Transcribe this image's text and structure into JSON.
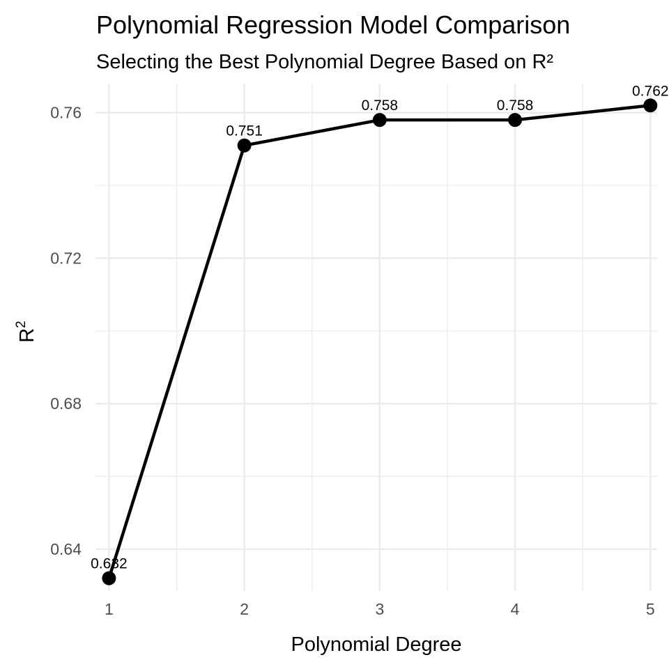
{
  "chart_data": {
    "type": "line",
    "title": "Polynomial Regression Model Comparison",
    "subtitle": "Selecting the Best Polynomial Degree Based on R²",
    "xlabel": "Polynomial Degree",
    "ylabel": "R",
    "ylabel_superscript": "2",
    "x": [
      1,
      2,
      3,
      4,
      5
    ],
    "values": [
      0.632,
      0.751,
      0.758,
      0.758,
      0.762
    ],
    "data_labels": [
      "0.632",
      "0.751",
      "0.758",
      "0.758",
      "0.762"
    ],
    "x_ticks": [
      "1",
      "2",
      "3",
      "4",
      "5"
    ],
    "y_ticks": [
      0.64,
      0.68,
      0.72,
      0.76
    ],
    "y_tick_labels": [
      "0.64",
      "0.68",
      "0.72",
      "0.76"
    ],
    "xlim": [
      0.9,
      5.05
    ],
    "ylim": [
      0.6285,
      0.768
    ],
    "grid": true,
    "legend": "none",
    "line_color": "#000000",
    "grid_color": "#ebebeb"
  }
}
